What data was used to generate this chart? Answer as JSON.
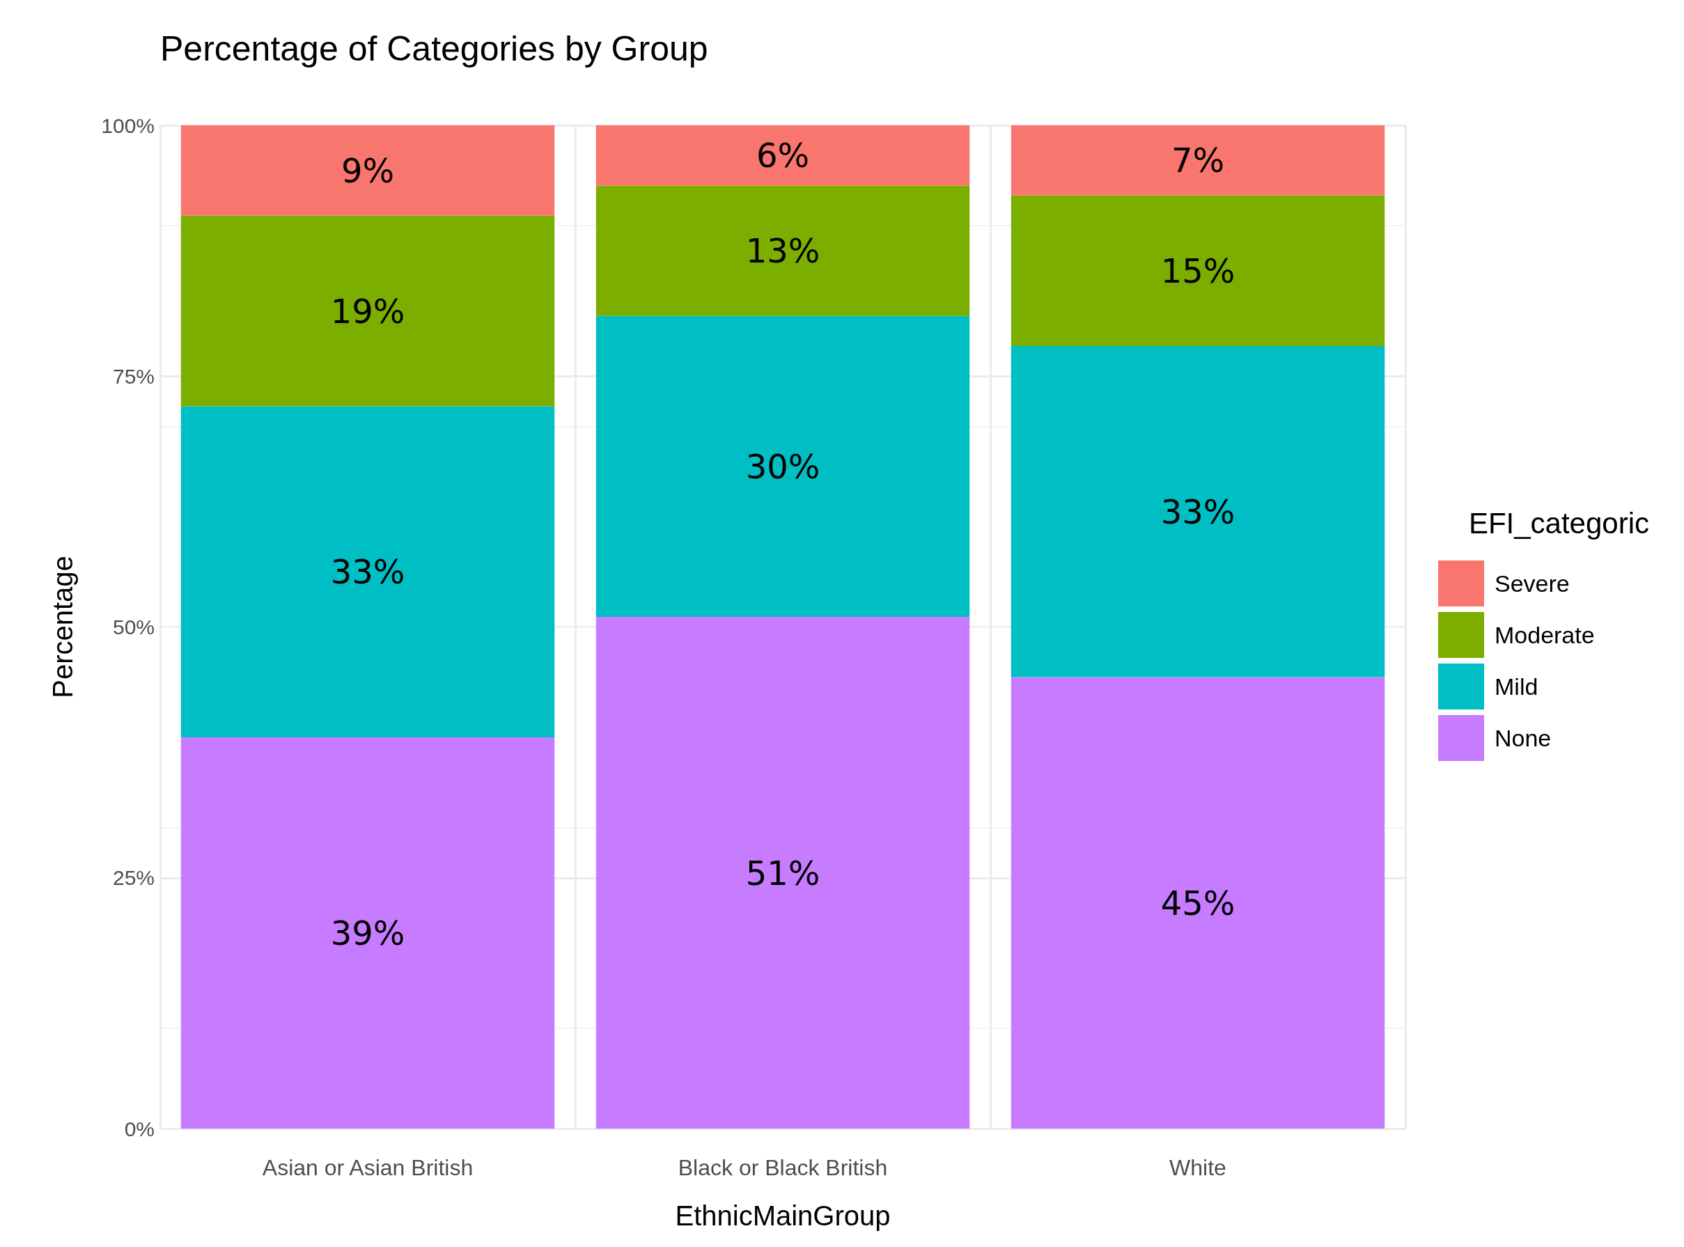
{
  "chart_data": {
    "type": "bar",
    "title": "Percentage of Categories by Group",
    "xlabel": "EthnicMainGroup",
    "ylabel": "Percentage",
    "legend_title": "EFI_categoric",
    "categories": [
      "Asian or Asian British",
      "Black or Black British",
      "White"
    ],
    "series": [
      {
        "name": "None",
        "color": "#c77cff",
        "values": [
          39,
          51,
          45
        ],
        "value_labels": [
          "39%",
          "51%",
          "45%"
        ]
      },
      {
        "name": "Mild",
        "color": "#00bfc4",
        "values": [
          33,
          30,
          33
        ],
        "value_labels": [
          "33%",
          "30%",
          "33%"
        ]
      },
      {
        "name": "Moderate",
        "color": "#7cae00",
        "values": [
          19,
          13,
          15
        ],
        "value_labels": [
          "19%",
          "13%",
          "15%"
        ]
      },
      {
        "name": "Severe",
        "color": "#f8766d",
        "values": [
          9,
          6,
          7
        ],
        "value_labels": [
          "9%",
          "6%",
          "7%"
        ]
      }
    ],
    "stacked": true,
    "ylim": [
      0,
      100
    ],
    "yticks": [
      {
        "value": 0,
        "label": "0%"
      },
      {
        "value": 25,
        "label": "25%"
      },
      {
        "value": 50,
        "label": "50%"
      },
      {
        "value": 75,
        "label": "75%"
      },
      {
        "value": 100,
        "label": "100%"
      }
    ],
    "grid": true,
    "legend": "right"
  }
}
